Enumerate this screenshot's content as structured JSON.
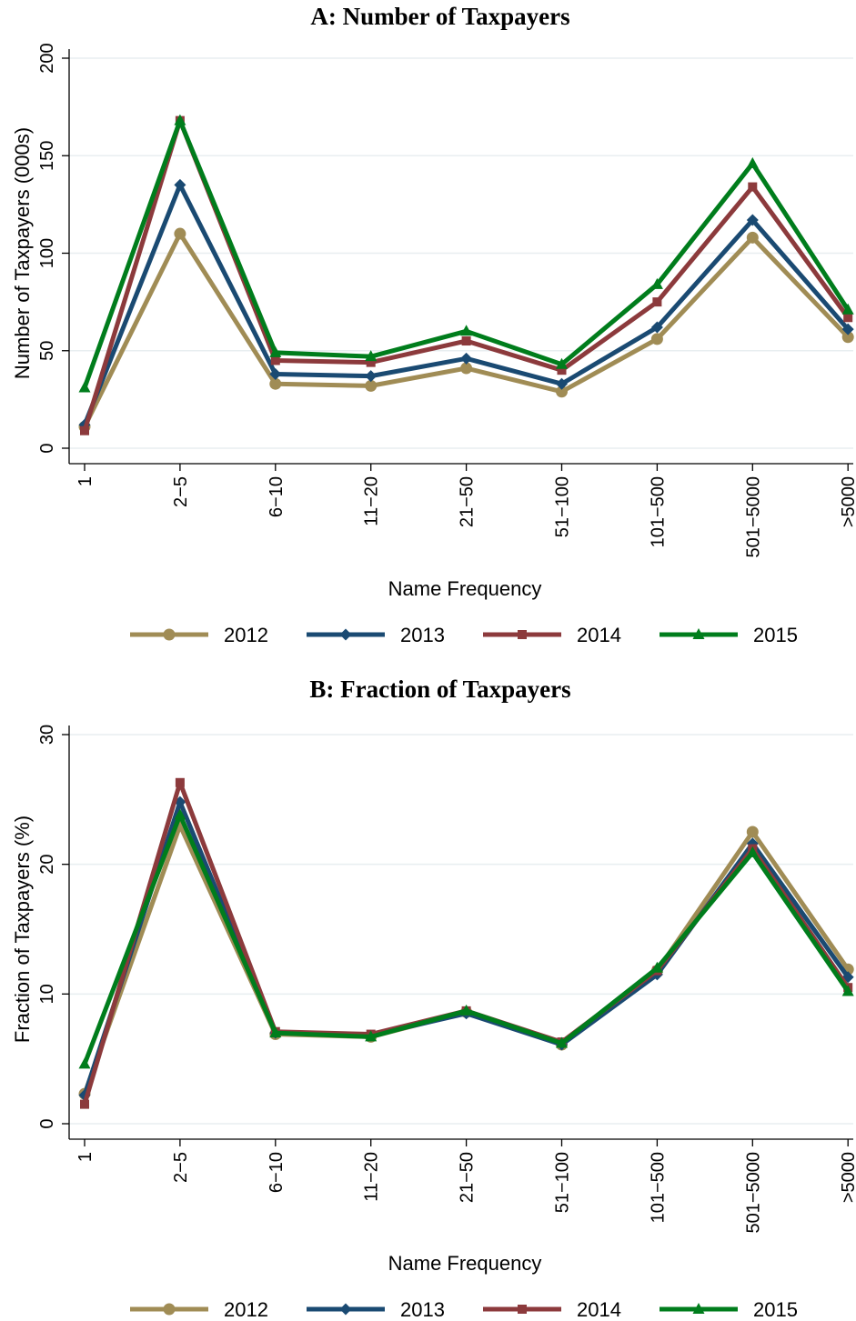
{
  "chart_data": [
    {
      "type": "line",
      "title": "A: Number of Taxpayers",
      "xlabel": "Name Frequency",
      "ylabel": "Number of Taxpayers (000s)",
      "ylim": [
        0,
        200
      ],
      "yticks": [
        0,
        50,
        100,
        150,
        200
      ],
      "grid": true,
      "legend": "bottom",
      "categories": [
        "1",
        "2−5",
        "6−10",
        "11−20",
        "21−50",
        "51−100",
        "101−500",
        "501−5000",
        ">5000"
      ],
      "series": [
        {
          "name": "2012",
          "color": "#a08c55",
          "marker": "circle",
          "values": [
            11,
            110,
            33,
            32,
            41,
            29,
            56,
            108,
            57
          ]
        },
        {
          "name": "2013",
          "color": "#1a4a72",
          "marker": "diamond",
          "values": [
            12,
            135,
            38,
            37,
            46,
            33,
            62,
            117,
            61
          ]
        },
        {
          "name": "2014",
          "color": "#8c3a3c",
          "marker": "square",
          "values": [
            9,
            168,
            45,
            44,
            55,
            40,
            75,
            134,
            67
          ]
        },
        {
          "name": "2015",
          "color": "#007d1c",
          "marker": "triangle",
          "values": [
            31,
            168,
            49,
            47,
            60,
            43,
            84,
            146,
            71
          ]
        }
      ]
    },
    {
      "type": "line",
      "title": "B: Fraction of Taxpayers",
      "xlabel": "Name Frequency",
      "ylabel": "Fraction of Taxpayers (%)",
      "ylim": [
        0,
        30
      ],
      "yticks": [
        0,
        10,
        20,
        30
      ],
      "grid": true,
      "legend": "bottom",
      "categories": [
        "1",
        "2−5",
        "6−10",
        "11−20",
        "21−50",
        "51−100",
        "101−500",
        "501−5000",
        ">5000"
      ],
      "series": [
        {
          "name": "2012",
          "color": "#a08c55",
          "marker": "circle",
          "values": [
            2.3,
            23.0,
            6.9,
            6.7,
            8.6,
            6.1,
            11.8,
            22.5,
            11.9
          ]
        },
        {
          "name": "2013",
          "color": "#1a4a72",
          "marker": "diamond",
          "values": [
            2.2,
            24.8,
            7.0,
            6.8,
            8.5,
            6.1,
            11.5,
            21.6,
            11.3
          ]
        },
        {
          "name": "2014",
          "color": "#8c3a3c",
          "marker": "square",
          "values": [
            1.5,
            26.3,
            7.1,
            6.9,
            8.7,
            6.3,
            11.8,
            21.2,
            10.5
          ]
        },
        {
          "name": "2015",
          "color": "#007d1c",
          "marker": "triangle",
          "values": [
            4.6,
            23.8,
            7.0,
            6.7,
            8.7,
            6.2,
            12.0,
            20.9,
            10.2
          ]
        }
      ]
    }
  ]
}
